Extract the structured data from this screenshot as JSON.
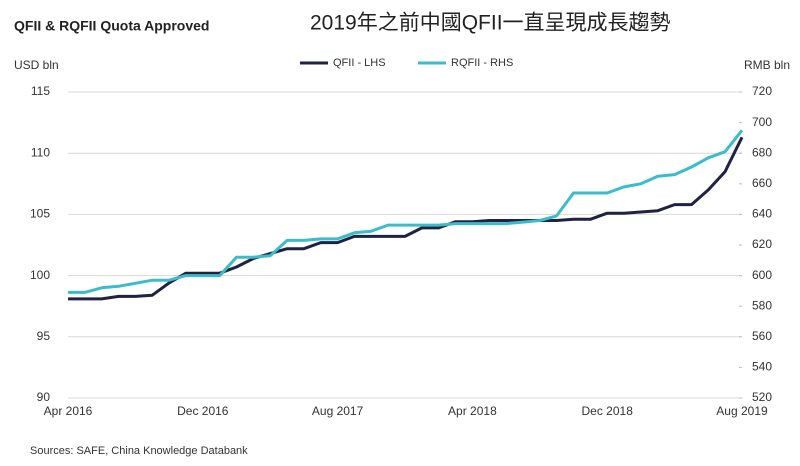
{
  "chart_data": {
    "type": "line",
    "title": "QFII & RQFII Quota Approved",
    "subtitle": "2019年之前中國QFII一直呈現成長趨勢",
    "y_label": "USD bln",
    "y2_label": "RMB bln",
    "source": "Sources: SAFE, China Knowledge Databank",
    "categories": [
      "Apr 2016",
      null,
      null,
      null,
      null,
      null,
      null,
      null,
      "Dec 2016",
      null,
      null,
      null,
      null,
      null,
      null,
      null,
      "Aug 2017",
      null,
      null,
      null,
      null,
      null,
      null,
      null,
      "Apr 2018",
      null,
      null,
      null,
      null,
      null,
      null,
      null,
      "Dec 2018",
      null,
      null,
      null,
      null,
      null,
      null,
      null,
      "Aug 2019"
    ],
    "series": [
      {
        "name": "QFII - LHS",
        "color": "#1f2240",
        "axis": "y",
        "values": [
          98.1,
          98.1,
          98.1,
          98.3,
          98.3,
          98.4,
          99.4,
          100.2,
          100.2,
          100.2,
          100.7,
          101.4,
          101.8,
          102.2,
          102.2,
          102.7,
          102.7,
          103.2,
          103.2,
          103.2,
          103.2,
          103.9,
          103.9,
          104.4,
          104.4,
          104.5,
          104.5,
          104.5,
          104.5,
          104.5,
          104.6,
          104.6,
          105.1,
          105.1,
          105.2,
          105.3,
          105.8,
          105.8,
          107.0,
          108.5,
          111.3
        ]
      },
      {
        "name": "RQFII - RHS",
        "color": "#3bbccb",
        "axis": "y2",
        "values": [
          589,
          589,
          592,
          593,
          595,
          597,
          597,
          600,
          600,
          600,
          612,
          612,
          613,
          623,
          623,
          624,
          624,
          628,
          629,
          633,
          633,
          633,
          633,
          634,
          634,
          634,
          634,
          635,
          636,
          639,
          654,
          654,
          654,
          658,
          660,
          665,
          666,
          671,
          677,
          681,
          695
        ]
      }
    ],
    "ylim": [
      90,
      115
    ],
    "yticks": [
      90,
      95,
      100,
      105,
      110,
      115
    ],
    "y2lim": [
      520,
      720
    ],
    "y2ticks": [
      520,
      540,
      560,
      580,
      600,
      620,
      640,
      660,
      680,
      700,
      720
    ],
    "grid": true,
    "legend": "top"
  }
}
